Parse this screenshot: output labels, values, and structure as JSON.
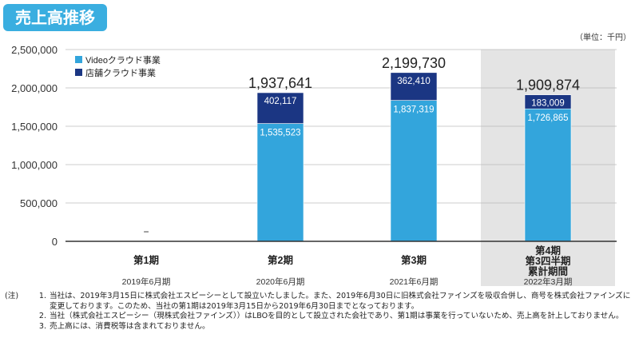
{
  "title": "売上高推移",
  "chart_data": {
    "type": "bar",
    "stacked": true,
    "unit_label": "（単位：千円）",
    "categories": [
      "第1期",
      "第2期",
      "第3期",
      "第4期\n第3四半期\n累計期間"
    ],
    "category_dates": [
      "2019年6月期",
      "2020年6月期",
      "2021年6月期",
      "2022年3月期"
    ],
    "series": [
      {
        "name": "Videoクラウド事業",
        "color": "#33a5dc",
        "values": [
          0,
          1535523,
          1837319,
          1726865
        ],
        "labels": [
          "",
          "1,535,523",
          "1,837,319",
          "1,726,865"
        ]
      },
      {
        "name": "店舗クラウド事業",
        "color": "#1b3683",
        "values": [
          0,
          402117,
          362410,
          183009
        ],
        "labels": [
          "",
          "402,117",
          "362,410",
          "183,009"
        ]
      }
    ],
    "totals": [
      "−",
      "1,937,641",
      "2,199,730",
      "1,909,874"
    ],
    "ylim": [
      0,
      2500000
    ],
    "yticks": [
      "0",
      "500,000",
      "1,000,000",
      "1,500,000",
      "2,000,000",
      "2,500,000"
    ],
    "grid": true,
    "highlight_category": "第4期\n第3四半期\n累計期間",
    "legend_position": "top-left"
  },
  "notes": [
    {
      "lead": "(注)",
      "num": "1.",
      "text": "当社は、2019年3月15日に株式会社エスピーシーとして設立いたしました。また、2019年6月30日に旧株式会社ファインズを吸収合併し、商号を株式会社ファインズに変更しております。このため、当社の第1期は2019年3月15日から2019年6月30日までとなっております。"
    },
    {
      "lead": "",
      "num": "2.",
      "text": "当社（株式会社エスピーシー（現株式会社ファインズ））はLBOを目的として設立された会社であり、第1期は事業を行っていないため、売上高を計上しておりません。"
    },
    {
      "lead": "",
      "num": "3.",
      "text": "売上高には、消費税等は含まれておりません。"
    }
  ]
}
